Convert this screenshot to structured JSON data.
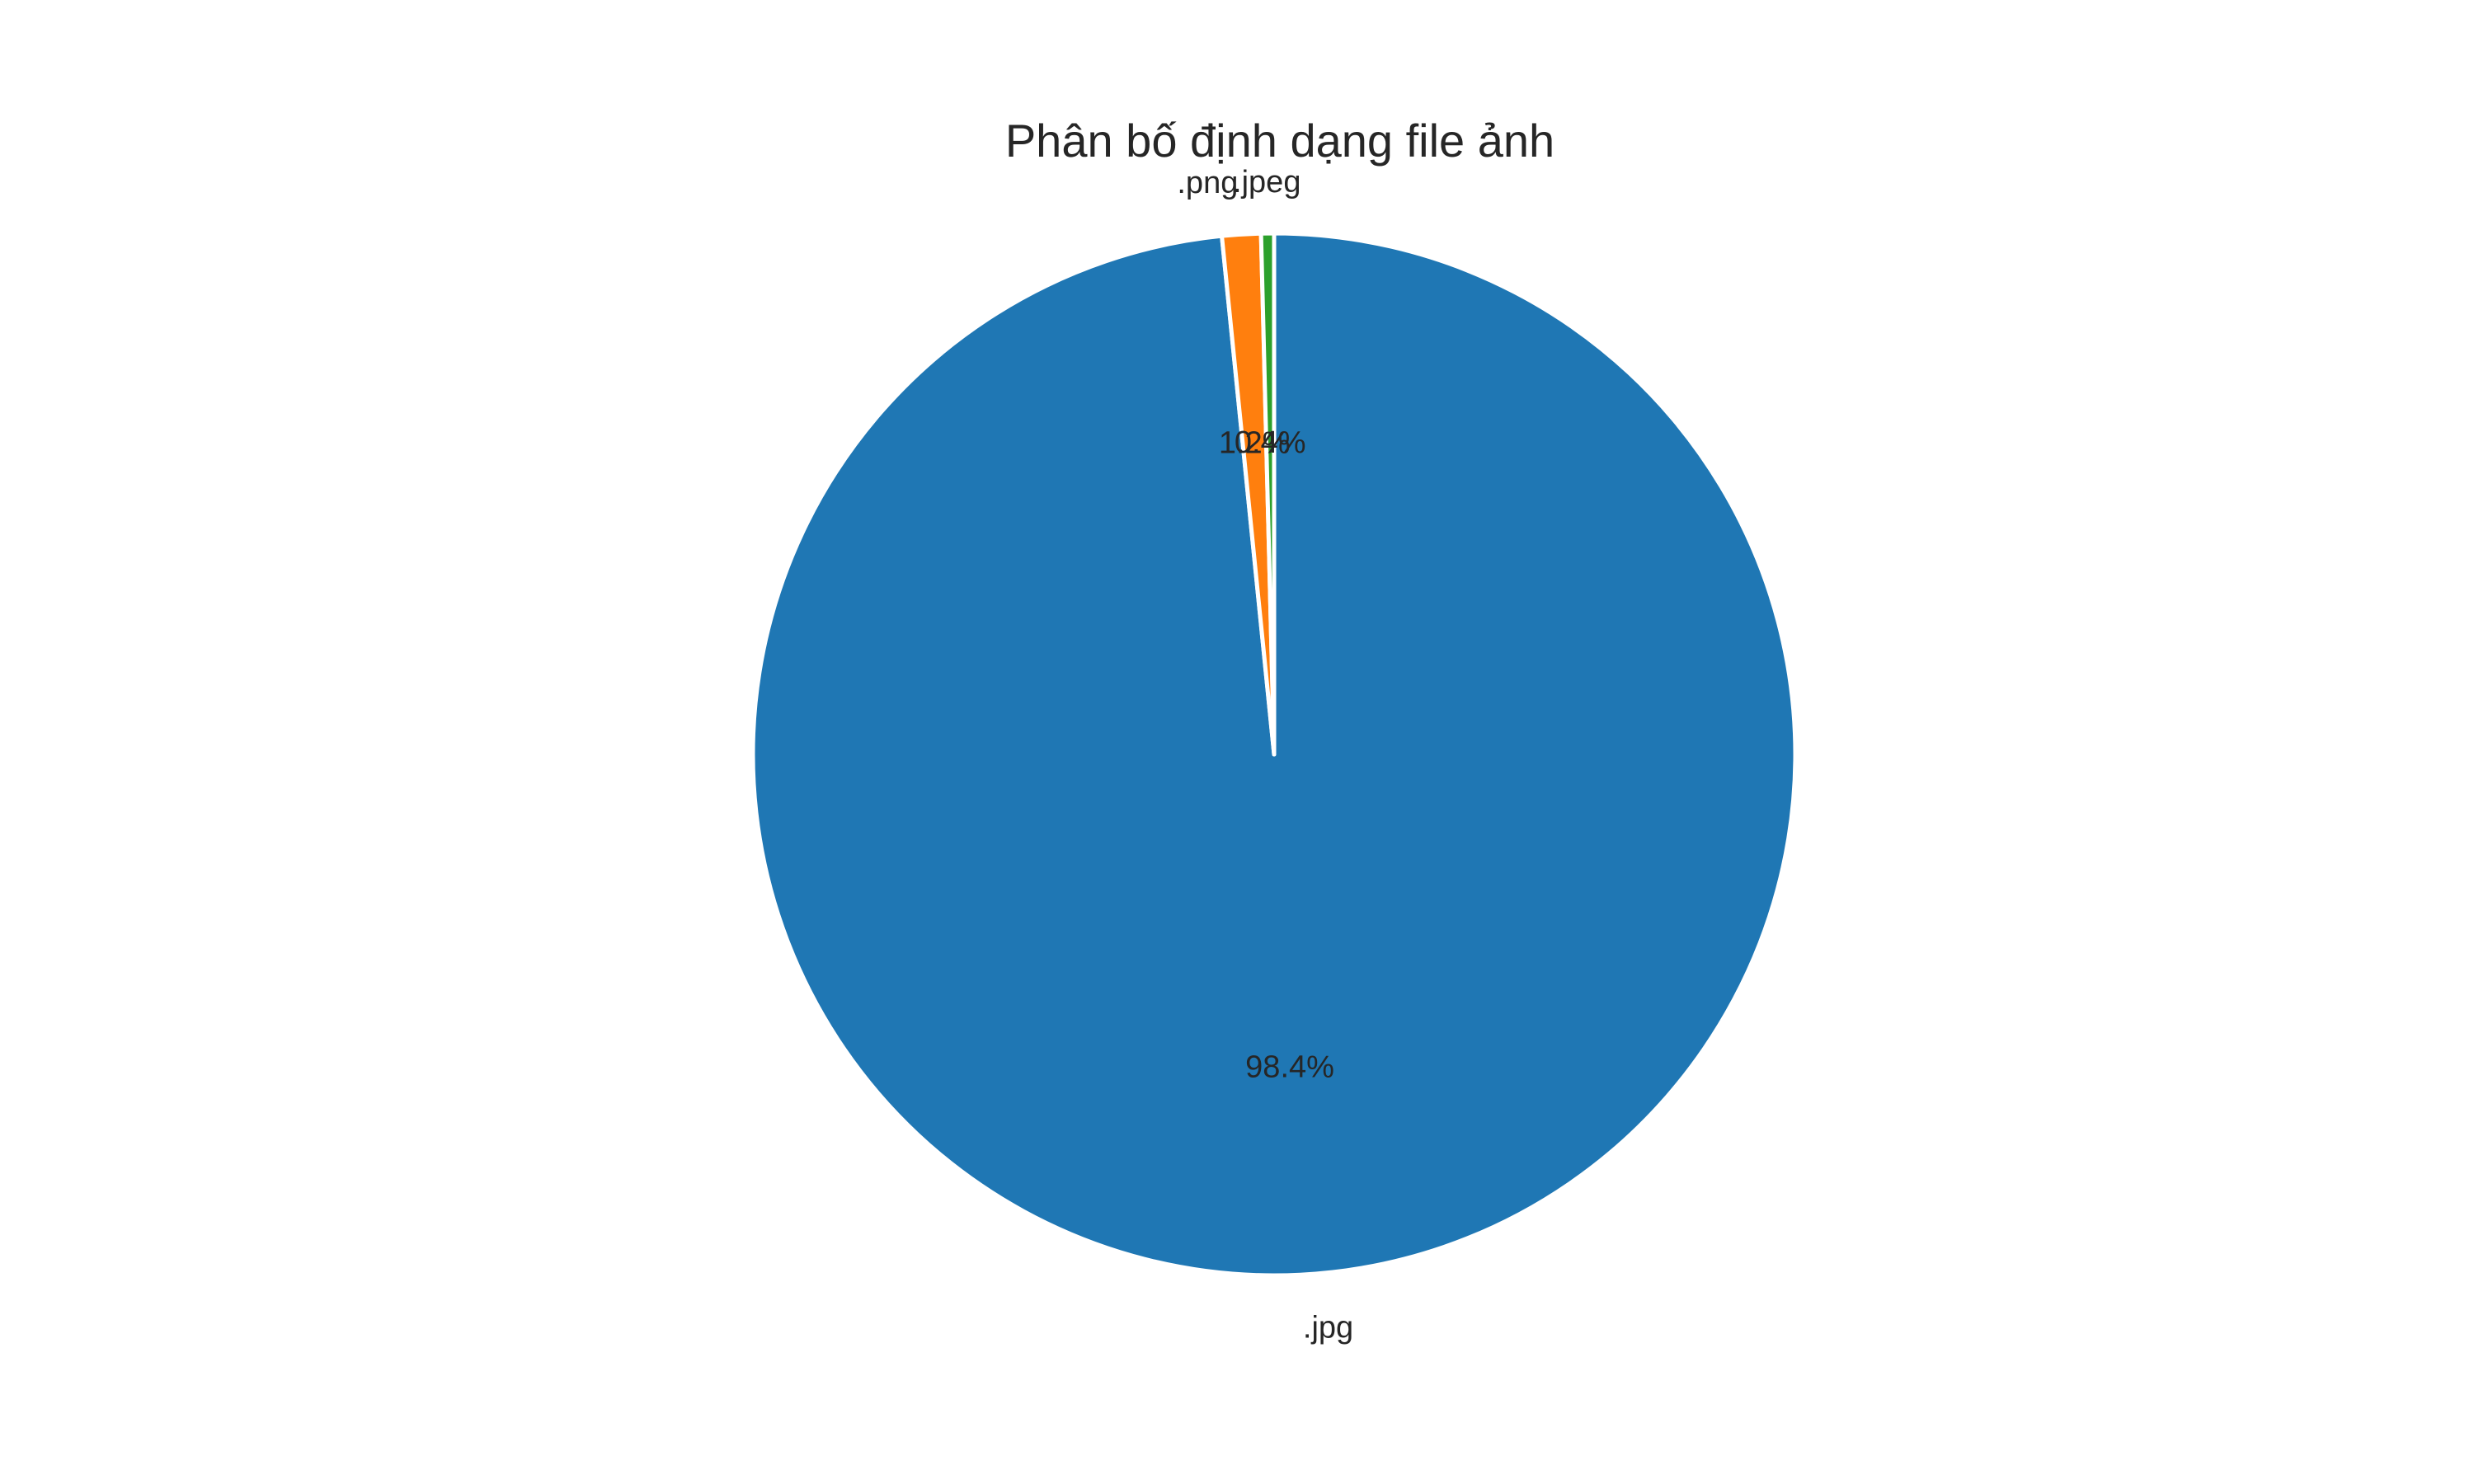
{
  "chart_data": {
    "type": "pie",
    "title": "Phân bố định dạng file ảnh",
    "labels": [
      ".jpg",
      ".png",
      ".jpeg"
    ],
    "values": [
      98.4,
      1.2,
      0.4
    ],
    "percent_labels": [
      "98.4%",
      "1.2%",
      "0.4%"
    ],
    "colors": [
      "#1f77b4",
      "#ff7f0e",
      "#2ca02c"
    ],
    "slice_edge_color": "#ffffff",
    "start_angle_deg": 90,
    "direction": "clockwise",
    "legend": "none"
  }
}
